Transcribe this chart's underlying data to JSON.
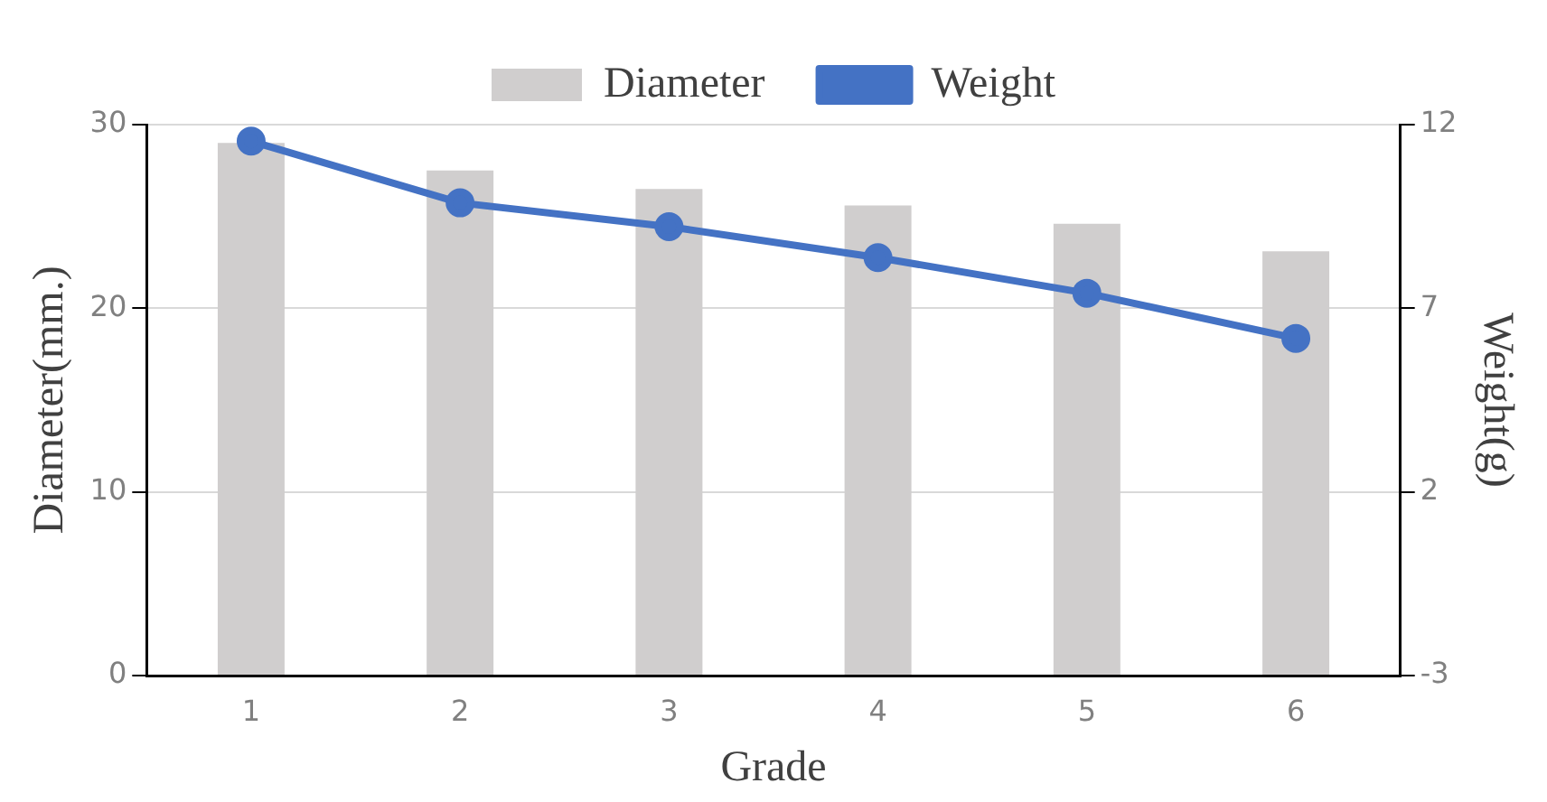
{
  "chart_data": {
    "type": "bar",
    "categories": [
      "1",
      "2",
      "3",
      "4",
      "5",
      "6"
    ],
    "series": [
      {
        "name": "Diameter",
        "color": "#d0cece",
        "values": [
          29.0,
          27.5,
          26.5,
          25.6,
          24.6,
          23.1
        ]
      },
      {
        "name": "Weight",
        "type": "line",
        "axis": "y2",
        "color": "#4472c4",
        "values": [
          11.55,
          9.87,
          9.22,
          8.38,
          7.41,
          6.18
        ]
      }
    ],
    "xlabel": "Grade",
    "ylabel": "Diameter(mm.)",
    "y2label": "Weight(g)",
    "ylim": [
      0,
      30
    ],
    "yticks": [
      0,
      10,
      20,
      30
    ],
    "y2lim": [
      -3,
      12
    ],
    "y2ticks": [
      -3,
      2,
      7,
      12
    ],
    "grid": "y",
    "legend": "top",
    "marker": "circle",
    "line_style": "solid"
  }
}
